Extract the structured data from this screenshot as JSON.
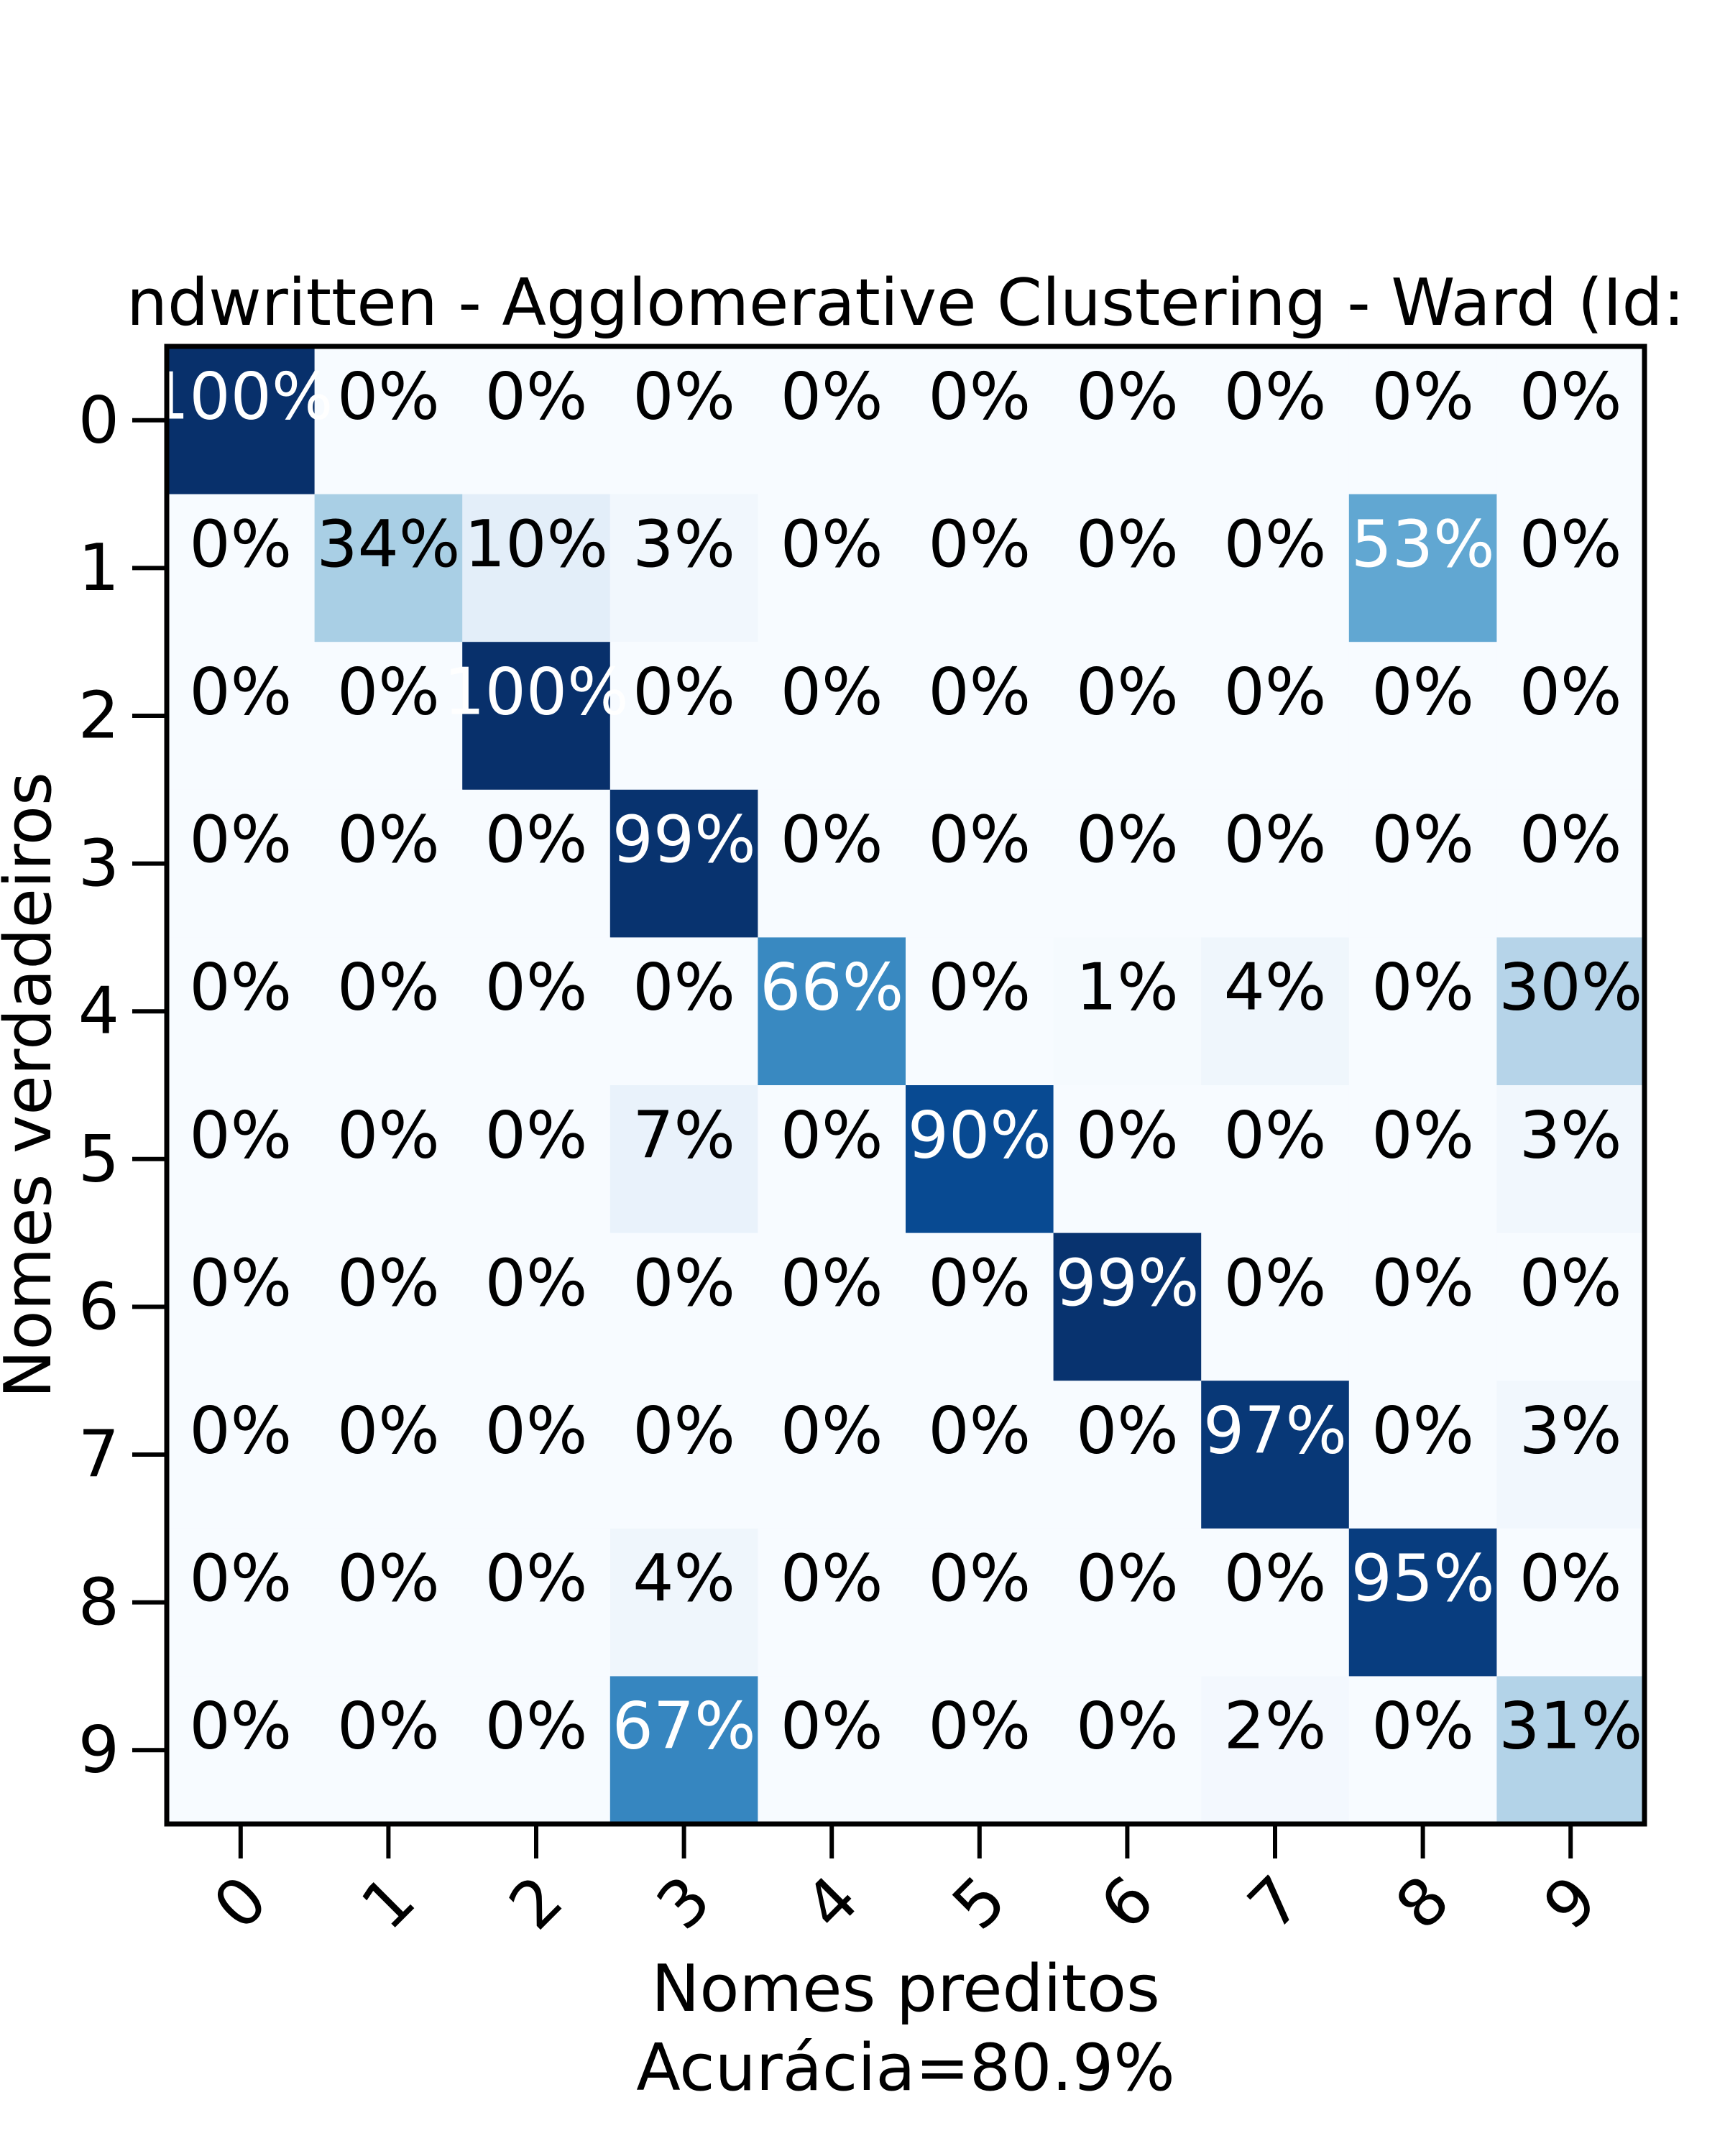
{
  "chart_data": {
    "type": "heatmap",
    "title": "ndwritten - Agglomerative Clustering - Ward (Id:",
    "xlabel": "Nomes preditos",
    "xlabel_note": "Acurácia=80.9%",
    "ylabel": "Nomes verdadeiros",
    "x_categories": [
      "0",
      "1",
      "2",
      "3",
      "4",
      "5",
      "6",
      "7",
      "8",
      "9"
    ],
    "y_categories": [
      "0",
      "1",
      "2",
      "3",
      "4",
      "5",
      "6",
      "7",
      "8",
      "9"
    ],
    "value_format": "percent",
    "colormap": "Blues",
    "values": [
      [
        100,
        0,
        0,
        0,
        0,
        0,
        0,
        0,
        0,
        0
      ],
      [
        0,
        34,
        10,
        3,
        0,
        0,
        0,
        0,
        53,
        0
      ],
      [
        0,
        0,
        100,
        0,
        0,
        0,
        0,
        0,
        0,
        0
      ],
      [
        0,
        0,
        0,
        99,
        0,
        0,
        0,
        0,
        0,
        0
      ],
      [
        0,
        0,
        0,
        0,
        66,
        0,
        1,
        4,
        0,
        30
      ],
      [
        0,
        0,
        0,
        7,
        0,
        90,
        0,
        0,
        0,
        3
      ],
      [
        0,
        0,
        0,
        0,
        0,
        0,
        99,
        0,
        0,
        0
      ],
      [
        0,
        0,
        0,
        0,
        0,
        0,
        0,
        97,
        0,
        3
      ],
      [
        0,
        0,
        0,
        4,
        0,
        0,
        0,
        0,
        95,
        0
      ],
      [
        0,
        0,
        0,
        67,
        0,
        0,
        0,
        2,
        0,
        31
      ]
    ]
  }
}
